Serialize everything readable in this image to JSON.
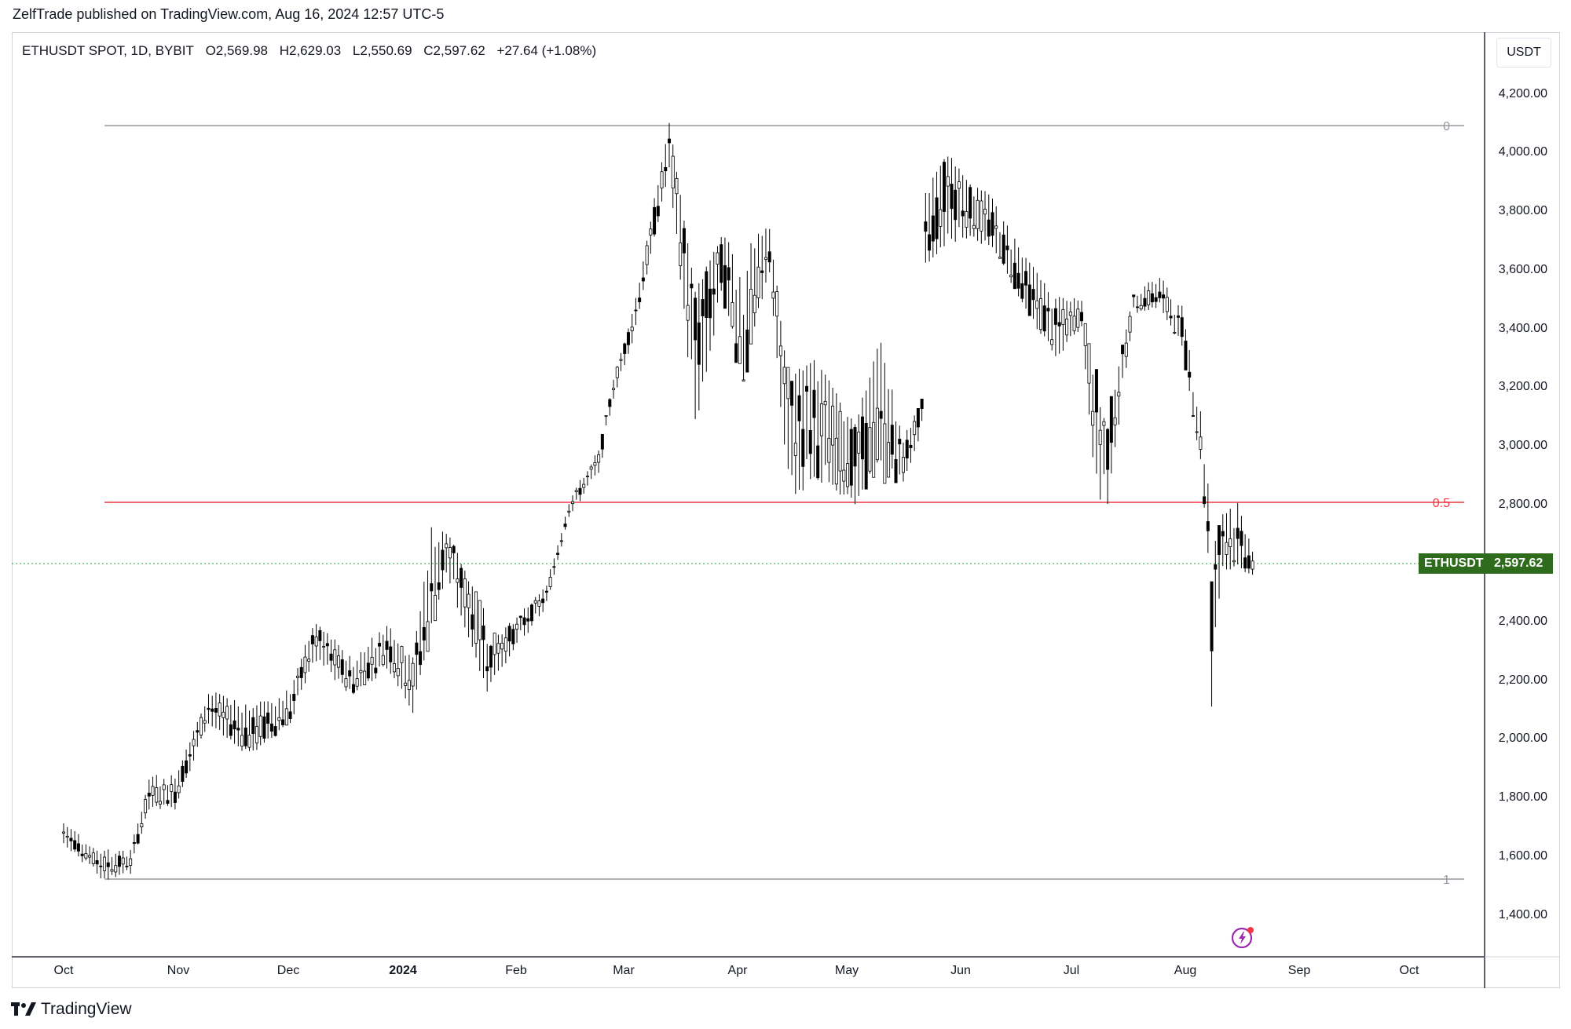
{
  "header": {
    "publisher_line": "ZelfTrade published on TradingView.com, Aug 16, 2024 12:57 UTC-5"
  },
  "legend": {
    "symbol": "ETHUSDT SPOT, 1D, BYBIT",
    "open": "O2,569.98",
    "high": "H2,629.03",
    "low": "L2,550.69",
    "close": "C2,597.62",
    "change": "+27.64 (+1.08%)"
  },
  "price_scale": {
    "currency_button": "USDT",
    "tick_labels": [
      "4,200.00",
      "4,000.00",
      "3,800.00",
      "3,600.00",
      "3,400.00",
      "3,200.00",
      "3,000.00",
      "2,800.00",
      "2,400.00",
      "2,200.00",
      "2,000.00",
      "1,800.00",
      "1,600.00",
      "1,400.00"
    ],
    "symbol_badge": "ETHUSDT",
    "last_price_badge": "2,597.62"
  },
  "time_scale": {
    "labels": [
      "Oct",
      "Nov",
      "Dec",
      "2024",
      "Feb",
      "Mar",
      "Apr",
      "May",
      "Jun",
      "Jul",
      "Aug",
      "Sep",
      "Oct"
    ]
  },
  "fib_levels": [
    "0",
    "0.5",
    "1"
  ],
  "colors": {
    "candle": "#000000",
    "fib_line": "#9598a1",
    "half_line": "#f23645",
    "last_price_line": "#4caf50",
    "badge": "#2e6b1c",
    "bolt": "#9c27b0"
  },
  "footer": {
    "brand": "TradingView"
  },
  "chart_data": {
    "type": "candlestick",
    "title": "ETHUSDT SPOT, 1D, BYBIT",
    "ylim": [
      1260,
      4330
    ],
    "y_scale": "linear",
    "grid": false,
    "last_price": 2597.62,
    "fib_retracement": {
      "high": 4090,
      "low": 1520,
      "levels": [
        0,
        0.5,
        1
      ]
    },
    "series": [
      {
        "name": "ETHUSDT",
        "x": [
          "2023-10-01",
          "2023-10-09",
          "2023-10-12",
          "2023-10-19",
          "2023-10-24",
          "2023-10-31",
          "2023-11-09",
          "2023-11-20",
          "2023-12-01",
          "2023-12-05",
          "2023-12-08",
          "2023-12-18",
          "2023-12-27",
          "2024-01-03",
          "2024-01-08",
          "2024-01-12",
          "2024-01-16",
          "2024-01-22",
          "2024-01-23",
          "2024-01-30",
          "2024-02-08",
          "2024-02-14",
          "2024-02-22",
          "2024-02-26",
          "2024-03-03",
          "2024-03-12",
          "2024-03-19",
          "2024-03-26",
          "2024-04-01",
          "2024-04-08",
          "2024-04-13",
          "2024-04-20",
          "2024-05-01",
          "2024-05-08",
          "2024-05-14",
          "2024-05-19",
          "2024-05-20",
          "2024-05-26",
          "2024-06-01",
          "2024-06-07",
          "2024-06-17",
          "2024-06-24",
          "2024-07-01",
          "2024-07-05",
          "2024-07-08",
          "2024-07-15",
          "2024-07-22",
          "2024-07-28",
          "2024-08-02",
          "2024-08-04",
          "2024-08-05",
          "2024-08-06",
          "2024-08-08",
          "2024-08-12",
          "2024-08-16"
        ],
        "close": [
          1670,
          1580,
          1560,
          1570,
          1800,
          1810,
          2100,
          2000,
          2080,
          2250,
          2330,
          2180,
          2310,
          2200,
          2440,
          2650,
          2520,
          2350,
          2280,
          2350,
          2480,
          2780,
          2940,
          3200,
          3450,
          4000,
          3350,
          3600,
          3300,
          3650,
          3100,
          3050,
          2950,
          3000,
          2940,
          3120,
          3670,
          3900,
          3800,
          3730,
          3500,
          3380,
          3440,
          3100,
          3000,
          3480,
          3500,
          3380,
          2990,
          2700,
          2420,
          2600,
          2700,
          2640,
          2597.62
        ],
        "high": [
          1700,
          1610,
          1600,
          1600,
          1850,
          1850,
          2140,
          2090,
          2150,
          2300,
          2380,
          2250,
          2370,
          2260,
          2720,
          2690,
          2580,
          2420,
          2300,
          2380,
          2500,
          2800,
          2960,
          3200,
          3480,
          4090,
          3500,
          3700,
          3650,
          3730,
          3200,
          3280,
          3050,
          3350,
          3000,
          3130,
          3850,
          3970,
          3880,
          3820,
          3600,
          3480,
          3480,
          3150,
          3050,
          3500,
          3560,
          3450,
          3100,
          2850,
          2500,
          2650,
          2750,
          2780,
          2629.03
        ],
        "low": [
          1640,
          1560,
          1520,
          1550,
          1770,
          1760,
          2060,
          1950,
          2050,
          2200,
          2270,
          2150,
          2250,
          2090,
          2400,
          2550,
          2420,
          2200,
          2170,
          2300,
          2450,
          2760,
          2900,
          3150,
          3400,
          3950,
          3050,
          3520,
          3280,
          3600,
          2800,
          2900,
          2810,
          2960,
          2870,
          3060,
          3620,
          3700,
          3710,
          3680,
          3450,
          3300,
          3410,
          2800,
          2810,
          3440,
          3480,
          3340,
          2950,
          2630,
          2110,
          2320,
          2580,
          2590,
          2550.69
        ]
      }
    ]
  }
}
